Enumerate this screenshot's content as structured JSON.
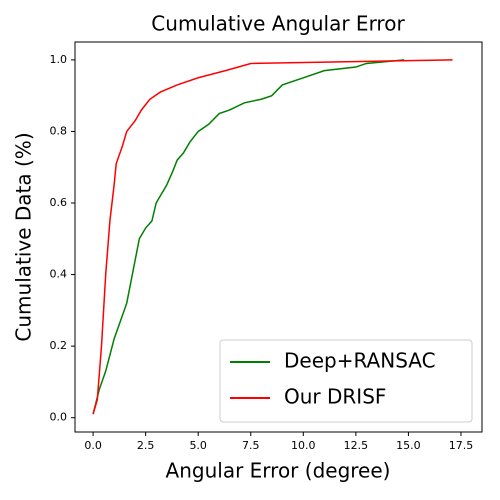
{
  "chart_data": {
    "type": "line",
    "title": "Cumulative Angular Error",
    "x_label": "Angular Error (degree)",
    "y_label": "Cumulative Data (%)",
    "xlim": [
      -0.86,
      18.5
    ],
    "ylim": [
      -0.04,
      1.05
    ],
    "xticks": [
      {
        "value": 0,
        "label": "0.0"
      },
      2.5,
      {
        "value": 5,
        "label": "5.0"
      },
      7.5,
      {
        "value": 10,
        "label": "10.0"
      },
      12.5,
      {
        "value": 15,
        "label": "15.0"
      },
      17.5
    ],
    "yticks": [
      {
        "value": 0,
        "label": "0.0"
      },
      0.2,
      0.4,
      0.6,
      0.8,
      {
        "value": 1,
        "label": "1.0"
      }
    ],
    "legend_position": "lower right",
    "series": [
      {
        "name": "Deep+RANSAC",
        "color": "#008000",
        "x": [
          0,
          0.3,
          0.6,
          1.0,
          1.3,
          1.6,
          1.8,
          2.0,
          2.2,
          2.5,
          2.8,
          3.0,
          3.3,
          3.5,
          3.8,
          4.0,
          4.3,
          4.6,
          5.0,
          5.5,
          6.0,
          6.5,
          7.2,
          8.0,
          8.5,
          9.0,
          10.0,
          11.0,
          12.5,
          13.0,
          14.8
        ],
        "values": [
          0.01,
          0.08,
          0.13,
          0.22,
          0.27,
          0.32,
          0.38,
          0.44,
          0.5,
          0.53,
          0.55,
          0.6,
          0.63,
          0.65,
          0.69,
          0.72,
          0.74,
          0.77,
          0.8,
          0.82,
          0.85,
          0.86,
          0.88,
          0.89,
          0.9,
          0.93,
          0.95,
          0.97,
          0.98,
          0.99,
          1.0
        ]
      },
      {
        "name": "Our DRISF",
        "color": "#ff0000",
        "x": [
          0,
          0.2,
          0.4,
          0.6,
          0.8,
          1.0,
          1.1,
          1.4,
          1.6,
          2.0,
          2.3,
          2.7,
          3.2,
          4.0,
          5.0,
          6.3,
          7.5,
          17.1
        ],
        "values": [
          0.01,
          0.05,
          0.2,
          0.4,
          0.55,
          0.65,
          0.71,
          0.76,
          0.8,
          0.83,
          0.86,
          0.89,
          0.91,
          0.93,
          0.95,
          0.97,
          0.99,
          1.0
        ]
      }
    ]
  }
}
